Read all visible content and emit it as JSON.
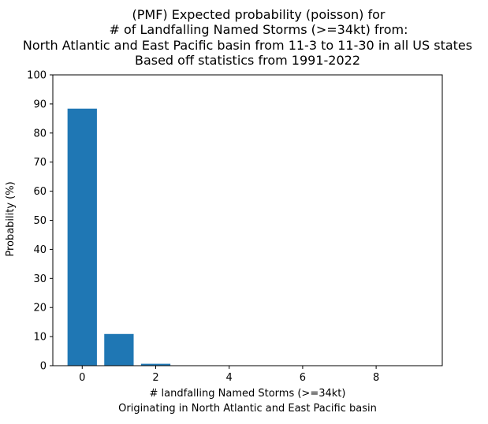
{
  "chart_data": {
    "type": "bar",
    "title_lines": [
      "(PMF) Expected probability (poisson) for",
      "# of Landfalling Named Storms (>=34kt) from:",
      "North Atlantic and East Pacific basin from 11-3 to 11-30 in all US states",
      "Based off statistics from 1991-2022"
    ],
    "xlabel": "# landfalling Named Storms (>=34kt)",
    "xlabel2": "Originating in North Atlantic and East Pacific basin",
    "ylabel": "Probability (%)",
    "x": [
      0,
      1,
      2,
      3,
      4,
      5,
      6,
      7,
      8,
      9
    ],
    "values": [
      88.4,
      10.9,
      0.65,
      0.03,
      0.0,
      0.0,
      0.0,
      0.0,
      0.0,
      0.0
    ],
    "xlim": [
      -0.8,
      9.8
    ],
    "ylim": [
      0,
      100
    ],
    "xticks": [
      0,
      2,
      4,
      6,
      8
    ],
    "yticks": [
      0,
      10,
      20,
      30,
      40,
      50,
      60,
      70,
      80,
      90,
      100
    ],
    "bar_color": "#1f77b4",
    "grid": false
  }
}
